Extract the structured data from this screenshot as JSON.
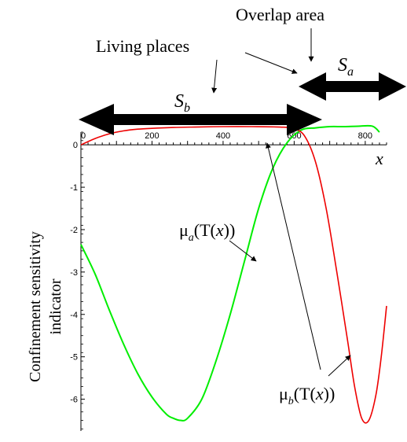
{
  "chart_data": {
    "type": "line",
    "title": "",
    "xlabel": "x",
    "ylabel_line1": "Confinement sensitivity",
    "ylabel_line2": "indicator",
    "xlim": [
      0,
      860
    ],
    "ylim": [
      -6.75,
      0.3
    ],
    "x_ticks": [
      0,
      200,
      400,
      600,
      800
    ],
    "x_tick_labels": [
      "0",
      "200",
      "400",
      "600",
      "800"
    ],
    "y_ticks": [
      -1,
      -2,
      -3,
      -4,
      -5,
      -6
    ],
    "y_tick_labels": [
      "-1",
      "-2",
      "-3",
      "-4",
      "-5",
      "-6"
    ],
    "grid": false,
    "series": [
      {
        "name": "μa(T(x))",
        "color": "#00ee00",
        "x": [
          0,
          40,
          80,
          120,
          160,
          200,
          240,
          260,
          280,
          300,
          340,
          380,
          420,
          460,
          500,
          540,
          580,
          620,
          660,
          700,
          740,
          780,
          820,
          840
        ],
        "values": [
          -2.35,
          -3.05,
          -3.9,
          -4.7,
          -5.4,
          -5.95,
          -6.35,
          -6.45,
          -6.5,
          -6.45,
          -6.0,
          -5.1,
          -4.0,
          -2.75,
          -1.5,
          -0.55,
          0.05,
          0.35,
          0.4,
          0.43,
          0.43,
          0.44,
          0.44,
          0.3
        ]
      },
      {
        "name": "μb(T(x))",
        "color": "#ee0000",
        "x": [
          0,
          40,
          80,
          120,
          160,
          200,
          260,
          320,
          400,
          480,
          560,
          600,
          630,
          660,
          690,
          720,
          750,
          770,
          790,
          810,
          830,
          845,
          860
        ],
        "values": [
          0.0,
          0.15,
          0.26,
          0.33,
          0.37,
          0.39,
          0.41,
          0.42,
          0.43,
          0.43,
          0.42,
          0.38,
          0.2,
          -0.4,
          -1.5,
          -3.0,
          -4.6,
          -5.7,
          -6.45,
          -6.5,
          -5.9,
          -5.0,
          -3.8
        ]
      }
    ],
    "annotations": {
      "overlap_area": "Overlap area",
      "living_places": "Living places",
      "sb_main": "S",
      "sb_sub": "b",
      "sa_main": "S",
      "sa_sub": "a",
      "mu_a_main": "μ",
      "mu_a_sub": "a",
      "mu_a_rest_open": "(T(",
      "mu_a_x": "x",
      "mu_a_rest_close": "))",
      "mu_b_main": "μ",
      "mu_b_sub": "b",
      "mu_b_rest_open": "(T(",
      "mu_b_x": "x",
      "mu_b_rest_close": "))"
    }
  }
}
